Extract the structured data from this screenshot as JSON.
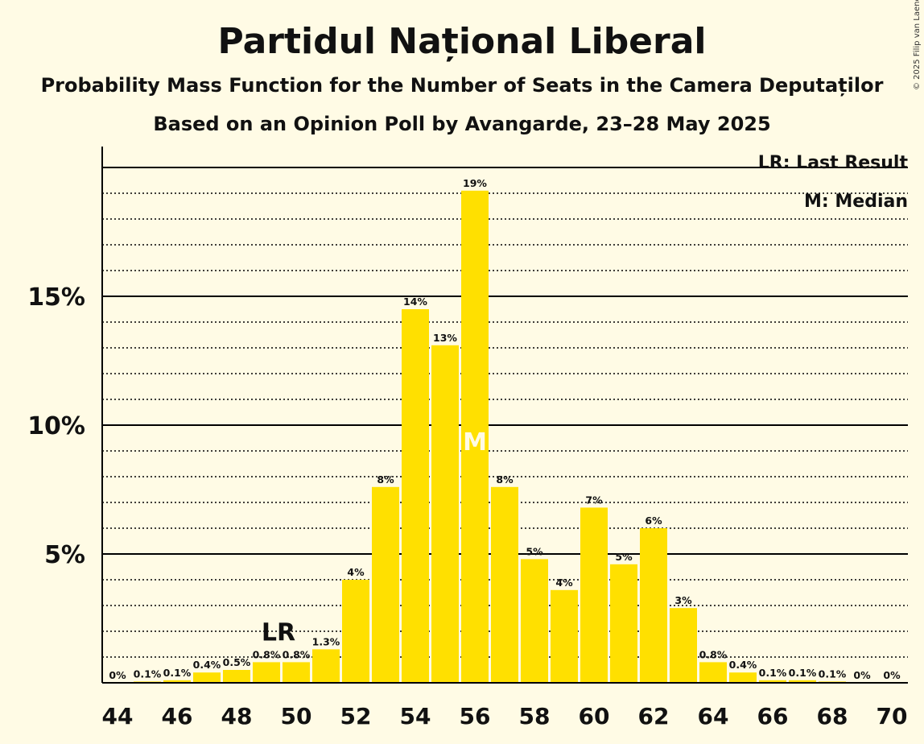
{
  "chart_data": {
    "type": "bar",
    "title": "Partidul Național Liberal",
    "subtitle": "Probability Mass Function for the Number of Seats in the Camera Deputaților",
    "subtitle2": "Based on an Opinion Poll by Avangarde, 23–28 May 2025",
    "copyright": "© 2025 Filip van Laenen",
    "x": [
      44,
      45,
      46,
      47,
      48,
      49,
      50,
      51,
      52,
      53,
      54,
      55,
      56,
      57,
      58,
      59,
      60,
      61,
      62,
      63,
      64,
      65,
      66,
      67,
      68,
      69,
      70
    ],
    "values": [
      0,
      0.05,
      0.1,
      0.4,
      0.5,
      0.8,
      0.8,
      1.3,
      4,
      7.6,
      14.5,
      13.1,
      19.1,
      7.6,
      4.8,
      3.6,
      6.8,
      4.6,
      6,
      2.9,
      0.8,
      0.4,
      0.1,
      0.1,
      0.05,
      0,
      0
    ],
    "labels": [
      "0%",
      "0.1%",
      "0.1%",
      "0.4%",
      "0.5%",
      "0.8%",
      "0.8%",
      "1.3%",
      "4%",
      "8%",
      "14%",
      "13%",
      "19%",
      "8%",
      "5%",
      "4%",
      "7%",
      "5%",
      "6%",
      "3%",
      "0.8%",
      "0.4%",
      "0.1%",
      "0.1%",
      "0.1%",
      "0%",
      "0%"
    ],
    "x_tick_labels": [
      "44",
      "46",
      "48",
      "50",
      "52",
      "54",
      "56",
      "58",
      "60",
      "62",
      "64",
      "66",
      "68",
      "70"
    ],
    "y_tick_labels": [
      "5%",
      "10%",
      "15%"
    ],
    "ylim": [
      0,
      20.8
    ],
    "last_result": 49,
    "last_result_marker": "LR",
    "median": 56,
    "median_marker": "M",
    "legend": [
      "LR: Last Result",
      "M: Median"
    ],
    "grid": true,
    "bar_color": "#FFE000",
    "background_color": "#FFFBE5"
  }
}
